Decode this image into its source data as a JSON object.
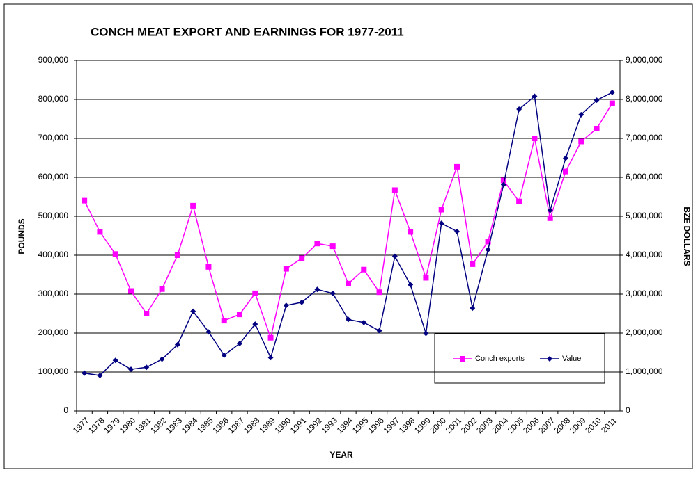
{
  "chart_data": {
    "type": "line",
    "title": "CONCH MEAT EXPORT AND EARNINGS FOR 1977-2011",
    "x_label": "YEAR",
    "y_label": "POUNDS",
    "y2_label": "BZE DOLLARS",
    "categories": [
      "1977",
      "1978",
      "1979",
      "1980",
      "1981",
      "1982",
      "1983",
      "1984",
      "1985",
      "1986",
      "1987",
      "1988",
      "1989",
      "1990",
      "1991",
      "1992",
      "1993",
      "1994",
      "1995",
      "1996",
      "1997",
      "1998",
      "1999",
      "2000",
      "2001",
      "2002",
      "2003",
      "2004",
      "2005",
      "2006",
      "2007",
      "2008",
      "2009",
      "2010",
      "2011"
    ],
    "series": [
      {
        "name": "Conch exports",
        "color": "#ff00ff",
        "marker": "square",
        "values": [
          540000,
          460000,
          403000,
          308000,
          250000,
          313000,
          400000,
          527000,
          370000,
          232000,
          248000,
          302000,
          188000,
          365000,
          392000,
          430000,
          423000,
          327000,
          363000,
          305000,
          567000,
          460000,
          342000,
          517000,
          627000,
          377000,
          435000,
          592000,
          538000,
          700000,
          495000,
          615000,
          692000,
          725000,
          790000
        ]
      },
      {
        "name": "Value",
        "color": "#000080",
        "marker": "diamond",
        "axis": "y2",
        "values": [
          970000,
          910000,
          1300000,
          1070000,
          1120000,
          1330000,
          1700000,
          2560000,
          2030000,
          1430000,
          1730000,
          2230000,
          1370000,
          2710000,
          2790000,
          3120000,
          3020000,
          2350000,
          2270000,
          2060000,
          3970000,
          3240000,
          1990000,
          4820000,
          4610000,
          2640000,
          4140000,
          5810000,
          7750000,
          8080000,
          5150000,
          6490000,
          7610000,
          7980000,
          8180000
        ]
      }
    ],
    "ylim": [
      0,
      900000
    ],
    "yticks": [
      0,
      {
        "value": 100000,
        "label": "100,000"
      },
      {
        "value": 200000,
        "label": "200,000"
      },
      {
        "value": 300000,
        "label": "300,000"
      },
      {
        "value": 400000,
        "label": "400,000"
      },
      {
        "value": 500000,
        "label": "500,000"
      },
      {
        "value": 600000,
        "label": "600,000"
      },
      {
        "value": 700000,
        "label": "700,000"
      },
      {
        "value": 800000,
        "label": "800,000"
      },
      {
        "value": 900000,
        "label": "900,000"
      }
    ],
    "y2lim": [
      0,
      9000000
    ],
    "y2ticks": [
      0,
      {
        "value": 1000000,
        "label": "1,000,000"
      },
      {
        "value": 2000000,
        "label": "2,000,000"
      },
      {
        "value": 3000000,
        "label": "3,000,000"
      },
      {
        "value": 4000000,
        "label": "4,000,000"
      },
      {
        "value": 5000000,
        "label": "5,000,000"
      },
      {
        "value": 6000000,
        "label": "6,000,000"
      },
      {
        "value": 7000000,
        "label": "7,000,000"
      },
      {
        "value": 8000000,
        "label": "8,000,000"
      },
      {
        "value": 9000000,
        "label": "9,000,000"
      }
    ],
    "grid": true
  }
}
